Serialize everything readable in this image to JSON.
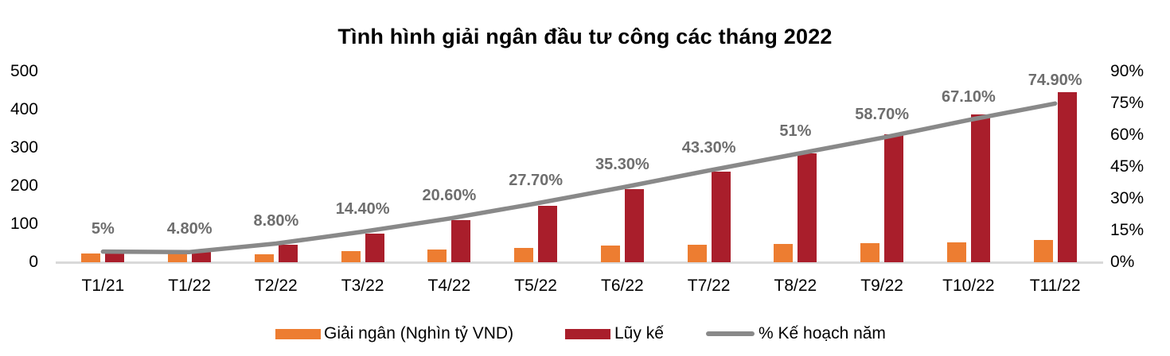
{
  "chart_data": {
    "type": "combo-bar-line",
    "title": "Tình hình giải ngân đầu tư công các tháng 2022",
    "categories": [
      "T1/21",
      "T1/22",
      "T2/22",
      "T3/22",
      "T4/22",
      "T5/22",
      "T6/22",
      "T7/22",
      "T8/22",
      "T9/22",
      "T10/22",
      "T11/22"
    ],
    "series": [
      {
        "name": "Giải ngân (Nghìn tỷ VND)",
        "type": "bar",
        "axis": "left",
        "color": "#ED7D31",
        "values": [
          23,
          25,
          21,
          30,
          33,
          38,
          44,
          45,
          48,
          49,
          53,
          58
        ]
      },
      {
        "name": "Lũy kế",
        "type": "bar",
        "axis": "left",
        "color": "#A91E2B",
        "values": [
          23,
          28,
          46,
          76,
          110,
          148,
          192,
          238,
          285,
          335,
          388,
          446
        ]
      },
      {
        "name": "% Kế hoạch năm",
        "type": "line",
        "axis": "right",
        "color": "#898989",
        "values": [
          5,
          4.8,
          8.8,
          14.4,
          20.6,
          27.7,
          35.3,
          43.3,
          51,
          58.7,
          67.1,
          74.9
        ],
        "labels": [
          "5%",
          "4.80%",
          "8.80%",
          "14.40%",
          "20.60%",
          "27.70%",
          "35.30%",
          "43.30%",
          "51%",
          "58.70%",
          "67.10%",
          "74.90%"
        ]
      }
    ],
    "left_axis": {
      "min": 0,
      "max": 500,
      "ticks": [
        "0",
        "100",
        "200",
        "300",
        "400",
        "500"
      ]
    },
    "right_axis": {
      "min": 0,
      "max": 90,
      "ticks": [
        "0%",
        "15%",
        "30%",
        "45%",
        "60%",
        "75%",
        "90%"
      ]
    },
    "grid": false,
    "legend_position": "bottom",
    "styles": {
      "axis_line_color": "#D9D9D9",
      "data_label_color": "#6E6E6E",
      "background": "#FFFFFF"
    }
  }
}
